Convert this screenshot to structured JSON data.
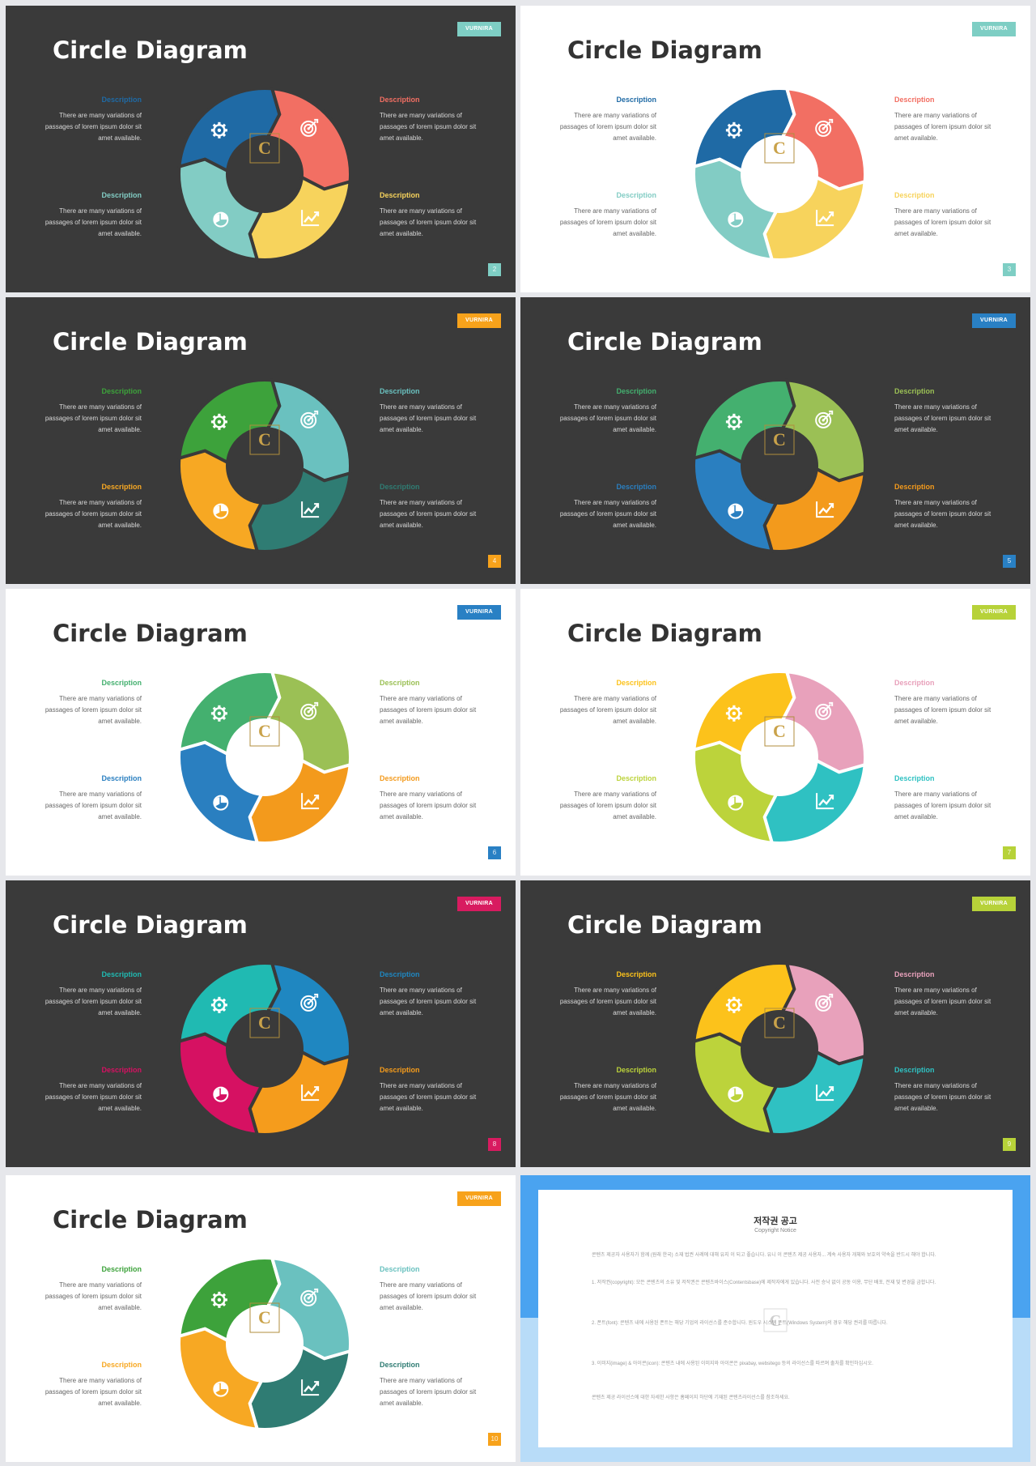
{
  "common": {
    "title": "Circle Diagram",
    "brand": "VURNIRA",
    "desc_heading": "Description",
    "desc_body": [
      "There are many variations of",
      "passages of lorem ipsum dolor sit",
      "amet available."
    ],
    "logo_letter": "C",
    "icons": [
      "gear-icon",
      "target-icon",
      "pie-chart-icon",
      "line-chart-icon"
    ]
  },
  "slides": [
    {
      "page": "2",
      "theme": "dark",
      "brand_color": "#7ecec4",
      "colors": [
        "#1f6aa5",
        "#f26f63",
        "#f7d35c",
        "#82ccc4"
      ]
    },
    {
      "page": "3",
      "theme": "light",
      "brand_color": "#7ecec4",
      "colors": [
        "#1f6aa5",
        "#f26f63",
        "#f7d35c",
        "#82ccc4"
      ]
    },
    {
      "page": "4",
      "theme": "dark",
      "brand_color": "#f7a21b",
      "colors": [
        "#3da23b",
        "#6ac1bf",
        "#2f7c73",
        "#f7a823"
      ]
    },
    {
      "page": "5",
      "theme": "dark",
      "brand_color": "#2980c4",
      "colors": [
        "#44b06f",
        "#9bc055",
        "#f39a1c",
        "#2a7fc0"
      ]
    },
    {
      "page": "6",
      "theme": "light",
      "brand_color": "#2980c4",
      "colors": [
        "#44b06f",
        "#9bc055",
        "#f39a1c",
        "#2a7fc0"
      ]
    },
    {
      "page": "7",
      "theme": "light",
      "brand_color": "#b7d239",
      "colors": [
        "#fcc21b",
        "#e8a1bb",
        "#2fc1c2",
        "#bcd33b"
      ]
    },
    {
      "page": "8",
      "theme": "dark",
      "brand_color": "#d81b60",
      "colors": [
        "#20bab2",
        "#1f87c1",
        "#f59c1c",
        "#d61162"
      ]
    },
    {
      "page": "9",
      "theme": "dark",
      "brand_color": "#b7d239",
      "colors": [
        "#fcc21b",
        "#e8a1bb",
        "#2fc1c2",
        "#bcd33b"
      ]
    },
    {
      "page": "10",
      "theme": "light",
      "brand_color": "#f7a21b",
      "colors": [
        "#3da23b",
        "#6ac1bf",
        "#2f7c73",
        "#f7a823"
      ]
    }
  ],
  "copyright": {
    "heading": "저작권 공고",
    "subheading": "Copyright Notice",
    "paragraphs": [
      "콘텐츠 제공자 사용자가 함께 (원래 한국) 소재 법권 사례에 대해 유지 이 되고 좋습니다. 유니 이 콘텐츠 제공 사용자... 계속 사용자 개체와 보호의 약속을 반드시 해야 합니다.",
      "1. 저작권(copyright): 모든 콘텐츠의 소유 및 저작권은 콘텐츠바이스(Contentsbase)에 제작자에게 있습니다. 사전 승낙 없이 공동 이용, 무단 배포, 전재 및 변경을 금합니다.",
      "2. 폰트(font): 콘텐츠 내에 사용된 폰트는 해당 기업의 라이선스를 준수합니다. 윈도우 시스템 폰트(Windows System)의 경우 해당 권리를 따릅니다.",
      "3. 이미지(image) & 아이콘(icon): 콘텐츠 내에 사용된 이미지와 아이콘은 pixabay, websitego 등의 라이선스를 따르며 출처를 확인하십시오.",
      "콘텐츠 제공 라이선스에 대한 자세한 사항은 홈페이지 하단에 기재된 콘텐츠라이선스를 참조하세요."
    ]
  }
}
